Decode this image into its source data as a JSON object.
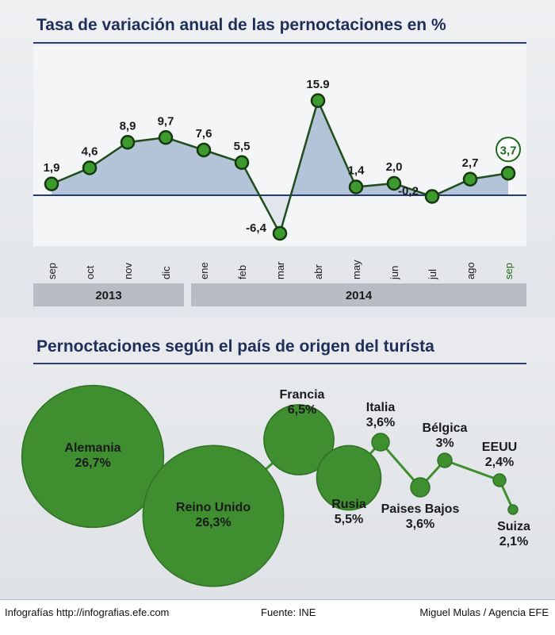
{
  "chart_data": [
    {
      "type": "area",
      "title": "Tasa de variación anual de las pernoctaciones en %",
      "categories": [
        "sep",
        "oct",
        "nov",
        "dic",
        "ene",
        "feb",
        "mar",
        "abr",
        "may",
        "jun",
        "jul",
        "ago",
        "sep"
      ],
      "values": [
        1.9,
        4.6,
        8.9,
        9.7,
        7.6,
        5.5,
        -6.4,
        15.9,
        1.4,
        2.0,
        -0.2,
        2.7,
        3.7
      ],
      "value_labels": [
        "1,9",
        "4,6",
        "8,9",
        "9,7",
        "7,6",
        "5,5",
        "-6,4",
        "15.9",
        "1,4",
        "2,0",
        "-0,2",
        "2,7",
        "3,7"
      ],
      "year_groups": [
        {
          "label": "2013",
          "months": 4
        },
        {
          "label": "2014",
          "months": 9
        }
      ],
      "highlight_last": true,
      "colors": {
        "area": "#b3c3d8",
        "line": "#1f4d1c",
        "marker": "#3c9a2f",
        "highlight": "#1e6b1c"
      }
    },
    {
      "type": "bubble",
      "title": "Pernoctaciones según el país de origen del turísta",
      "categories": [
        "Alemania",
        "Reino Unido",
        "Francia",
        "Rusia",
        "Italia",
        "Paises Bajos",
        "Bélgica",
        "EEUU",
        "Suiza"
      ],
      "values": [
        26.7,
        26.3,
        6.5,
        5.5,
        3.6,
        3.6,
        3.0,
        2.4,
        2.1
      ],
      "value_labels": [
        "26,7%",
        "26,3%",
        "6,5%",
        "5,5%",
        "3,6%",
        "3,6%",
        "3%",
        "2,4%",
        "2,1%"
      ],
      "colors": {
        "bubble": "#3f8f31",
        "bubble_edge": "#2f7226",
        "line": "#3f8f31"
      }
    }
  ],
  "footer": {
    "credit": "Infografías http://infografias.efe.com",
    "source": "Fuente: INE",
    "author": "Miguel Mulas / Agencia EFE"
  }
}
